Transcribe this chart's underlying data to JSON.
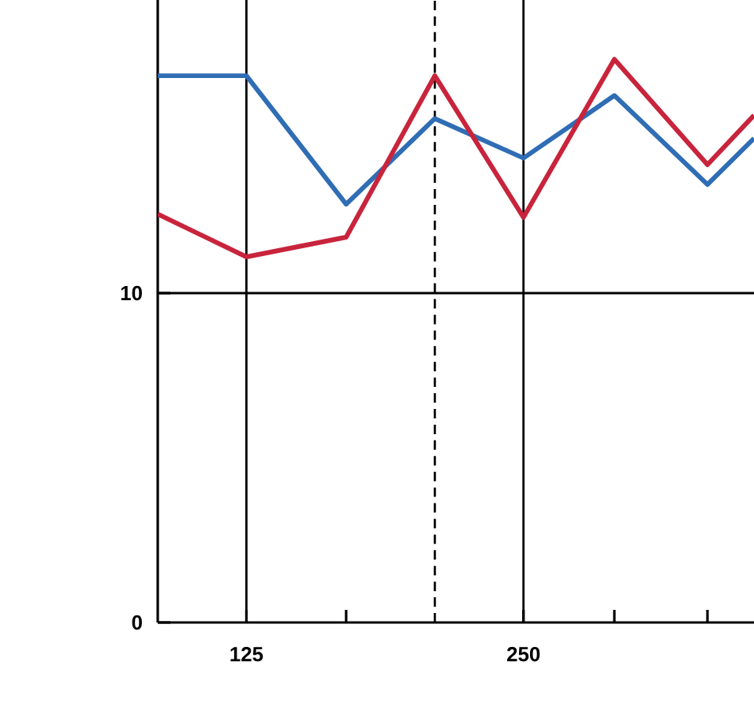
{
  "chart_data": {
    "type": "line",
    "x": [
      85,
      125,
      170,
      210,
      250,
      291,
      333,
      354
    ],
    "series": [
      {
        "color": "#2f6db5",
        "values": [
          16.6,
          16.6,
          12.7,
          15.3,
          14.1,
          16.0,
          13.3,
          14.7
        ]
      },
      {
        "color": "#c8243c",
        "values": [
          12.4,
          11.1,
          11.7,
          16.6,
          12.3,
          17.1,
          13.9,
          15.4
        ]
      }
    ],
    "xlim": [
      85,
      354
    ],
    "ylim": [
      0,
      18.9
    ],
    "xticks": [
      125,
      {
        "value": 170,
        "label": null
      },
      250,
      {
        "value": 291,
        "label": null
      },
      {
        "value": 333,
        "label": null
      }
    ],
    "yticks": [
      0,
      10
    ],
    "ref_lines": [
      {
        "axis": "x",
        "value": 125,
        "color": "#000000",
        "line_style": "solid"
      },
      {
        "axis": "x",
        "value": 210,
        "color": "#000000",
        "line_style": "dashed"
      },
      {
        "axis": "x",
        "value": 250,
        "color": "#000000",
        "line_style": "solid"
      },
      {
        "axis": "y",
        "value": 10,
        "color": "#000000",
        "line_style": "solid"
      }
    ],
    "grid": false,
    "marker": "none",
    "line_style": "solid"
  }
}
